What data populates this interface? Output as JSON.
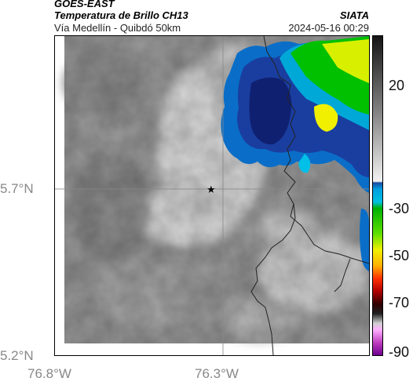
{
  "header": {
    "satellite": "GOES-EAST",
    "product": "Temperatura de Brillo CH13",
    "region": "Vía Medellín - Quibdó 50km",
    "agency": "SIATA",
    "datetime": "2024-05-16 00:29"
  },
  "axes": {
    "lat_labels": [
      "5.7°N",
      "5.2°N"
    ],
    "lon_labels": [
      "76.8°W",
      "76.3°W"
    ]
  },
  "colorbar": {
    "ticks": [
      "20",
      "-30",
      "-50",
      "-70",
      "-90"
    ],
    "colors": {
      "gray_top": "#1a1a1a",
      "gray_bottom": "#eeeeee",
      "blue": "#0a6ec8",
      "cyan": "#00c0e8",
      "green": "#00c000",
      "yellow": "#f0f000",
      "orange": "#ff8000",
      "red": "#d00000",
      "dark_red": "#400000",
      "pink": "#ff80ff",
      "purple": "#8000a0"
    }
  },
  "map": {
    "marker_icon": "star-icon",
    "background": "#9a9a9a",
    "gridline_color": "#777777"
  }
}
